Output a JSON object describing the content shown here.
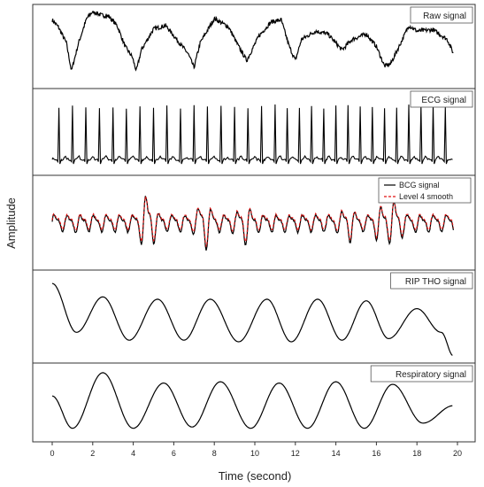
{
  "chart_data": {
    "type": "line",
    "xlabel": "Time (second)",
    "ylabel": "Amplitude",
    "xlim": [
      0,
      20
    ],
    "xticks": [
      0,
      2,
      4,
      6,
      8,
      10,
      12,
      14,
      16,
      18,
      20
    ],
    "grid": false,
    "line_color": "#000000",
    "smooth_color": "#e01010",
    "panels": [
      {
        "key": "raw",
        "title": "Raw signal",
        "ylim": [
          0,
          1
        ],
        "series": [
          {
            "name": "Raw signal",
            "x": [
              0,
              0.3,
              0.7,
              0.95,
              1.3,
              1.7,
              2.0,
              2.4,
              2.8,
              3.2,
              3.6,
              3.95,
              4.15,
              4.4,
              5.0,
              5.6,
              6.2,
              6.7,
              7.0,
              7.3,
              8.0,
              8.7,
              9.2,
              9.6,
              10.2,
              10.8,
              11.3,
              11.7,
              12.0,
              12.3,
              13.0,
              13.6,
              14.3,
              14.8,
              15.5,
              16.0,
              16.4,
              16.7,
              17.2,
              17.6,
              18.0,
              18.8,
              19.5,
              19.8
            ],
            "y": [
              0.88,
              0.78,
              0.55,
              0.15,
              0.55,
              0.9,
              1.0,
              0.95,
              0.93,
              0.8,
              0.5,
              0.35,
              0.15,
              0.45,
              0.75,
              0.8,
              0.58,
              0.4,
              0.2,
              0.55,
              0.9,
              0.78,
              0.5,
              0.3,
              0.65,
              0.85,
              0.88,
              0.5,
              0.3,
              0.6,
              0.72,
              0.68,
              0.45,
              0.6,
              0.68,
              0.5,
              0.22,
              0.25,
              0.55,
              0.8,
              0.72,
              0.74,
              0.6,
              0.4
            ]
          }
        ]
      },
      {
        "key": "ecg",
        "title": "ECG signal",
        "ylim": [
          0,
          1
        ],
        "peaks_x": [
          0.33,
          1.0,
          1.66,
          2.33,
          3.0,
          3.66,
          4.33,
          5.0,
          5.66,
          6.33,
          7.0,
          7.66,
          8.33,
          9.0,
          9.66,
          10.33,
          11.0,
          11.6,
          12.2,
          12.8,
          13.4,
          14.0,
          14.6,
          15.2,
          15.8,
          16.4,
          17.0,
          17.6,
          18.2,
          18.8,
          19.4
        ],
        "baseline": 0.12,
        "peak_height": 0.85,
        "series": [
          {
            "name": "ECG signal",
            "x": [
              0,
              20
            ],
            "y": [
              0.12,
              0.12
            ]
          }
        ]
      },
      {
        "key": "bcg",
        "title": "",
        "ylim": [
          -1,
          1
        ],
        "legend": [
          "BCG signal",
          "Level 4 smooth"
        ],
        "legend_position": "top-right",
        "series": [
          {
            "name": "BCG signal",
            "x": [
              0,
              20
            ],
            "y": [
              0,
              0
            ]
          },
          {
            "name": "Level 4 smooth",
            "x": [
              0,
              20
            ],
            "y": [
              0,
              0
            ]
          }
        ]
      },
      {
        "key": "rip",
        "title": "RIP THO signal",
        "ylim": [
          0,
          1
        ],
        "series": [
          {
            "name": "RIP THO signal",
            "x": [
              0,
              1.2,
              2.5,
              3.8,
              5.2,
              6.5,
              7.8,
              9.2,
              10.6,
              11.8,
              13.1,
              14.3,
              15.5,
              16.6,
              18.0,
              19.2,
              19.8
            ],
            "y": [
              0.92,
              0.3,
              0.75,
              0.2,
              0.72,
              0.2,
              0.72,
              0.18,
              0.72,
              0.18,
              0.72,
              0.2,
              0.7,
              0.22,
              0.6,
              0.3,
              0.0
            ]
          }
        ]
      },
      {
        "key": "resp",
        "title": "Respiratory signal",
        "ylim": [
          0,
          1
        ],
        "series": [
          {
            "name": "Respiratory signal",
            "x": [
              0,
              1.0,
              2.5,
              4.0,
              5.5,
              6.9,
              8.3,
              9.8,
              11.2,
              12.6,
              14.0,
              15.4,
              16.8,
              18.3,
              19.8
            ],
            "y": [
              0.6,
              0.1,
              0.96,
              0.1,
              0.8,
              0.12,
              0.82,
              0.1,
              0.8,
              0.1,
              0.82,
              0.1,
              0.78,
              0.18,
              0.45
            ]
          }
        ]
      }
    ]
  }
}
